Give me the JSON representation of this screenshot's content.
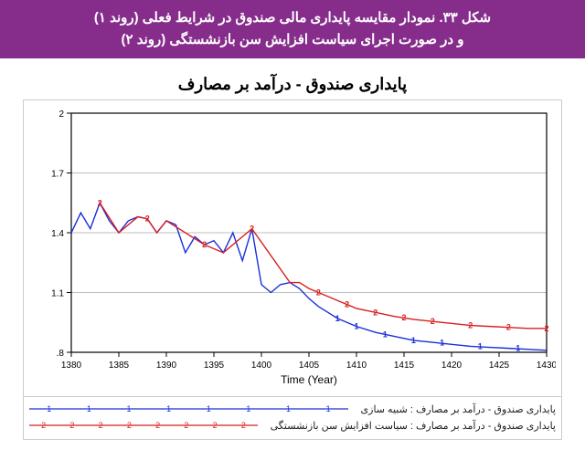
{
  "caption": {
    "line1": "شکل ۳۳. نمودار مقایسه پایداری مالی صندوق در شرایط فعلی (روند ۱)",
    "line2": "و در صورت اجرای سیاست افزایش سن بازنشستگی (روند ۲)"
  },
  "chart": {
    "type": "line",
    "title": "پایداری صندوق - درآمد بر مصارف",
    "xlabel": "Time (Year)",
    "xlim": [
      1380,
      1430
    ],
    "xticks": [
      1380,
      1385,
      1390,
      1395,
      1400,
      1405,
      1410,
      1415,
      1420,
      1425,
      1430
    ],
    "ylim": [
      0.8,
      2.0
    ],
    "yticks": [
      0.8,
      1.1,
      1.4,
      1.7,
      2.0
    ],
    "ytick_labels": [
      ".8",
      "1.1",
      "1.4",
      "1.7",
      "2"
    ],
    "background_color": "#ffffff",
    "grid_color": "#bfbfbf",
    "axis_color": "#000000",
    "label_fontsize": 12,
    "tick_fontsize": 10,
    "line_width": 1.4,
    "series": [
      {
        "label": "پایداری صندوق - درآمد بر مصارف : شبیه سازی",
        "color": "#1a2fdc",
        "marker_char": "1",
        "x": [
          1380,
          1381,
          1382,
          1383,
          1384,
          1385,
          1386,
          1387,
          1388,
          1389,
          1390,
          1391,
          1392,
          1393,
          1394,
          1395,
          1396,
          1397,
          1398,
          1399,
          1400,
          1401,
          1402,
          1403,
          1404,
          1405,
          1406,
          1407,
          1408,
          1409,
          1410,
          1412,
          1414,
          1416,
          1418,
          1420,
          1422,
          1424,
          1426,
          1428,
          1430
        ],
        "y": [
          1.4,
          1.5,
          1.42,
          1.55,
          1.46,
          1.4,
          1.46,
          1.48,
          1.47,
          1.4,
          1.46,
          1.44,
          1.3,
          1.38,
          1.34,
          1.36,
          1.3,
          1.4,
          1.26,
          1.42,
          1.14,
          1.1,
          1.14,
          1.15,
          1.12,
          1.07,
          1.03,
          1.0,
          0.97,
          0.95,
          0.93,
          0.9,
          0.88,
          0.86,
          0.85,
          0.84,
          0.83,
          0.825,
          0.82,
          0.815,
          0.81
        ],
        "marker_x": [
          1408,
          1410,
          1413,
          1416,
          1419,
          1423,
          1427
        ],
        "marker_y": [
          0.97,
          0.93,
          0.89,
          0.86,
          0.848,
          0.83,
          0.82
        ]
      },
      {
        "label": "پایداری صندوق - درآمد بر مصارف : سیاست افزایش سن بازنشستگی",
        "color": "#d81f1f",
        "marker_char": "2",
        "x": [
          1383,
          1385,
          1387,
          1388,
          1389,
          1390,
          1394,
          1396,
          1399,
          1403,
          1404,
          1405,
          1406,
          1407,
          1408,
          1409,
          1410,
          1412,
          1414,
          1416,
          1418,
          1420,
          1422,
          1424,
          1426,
          1428,
          1430
        ],
        "y": [
          1.55,
          1.4,
          1.48,
          1.47,
          1.4,
          1.46,
          1.34,
          1.3,
          1.42,
          1.15,
          1.15,
          1.12,
          1.1,
          1.08,
          1.06,
          1.04,
          1.02,
          1.0,
          0.98,
          0.965,
          0.955,
          0.945,
          0.935,
          0.93,
          0.925,
          0.92,
          0.92
        ],
        "marker_x": [
          1383,
          1388,
          1394,
          1399,
          1406,
          1409,
          1412,
          1415,
          1418,
          1422,
          1426,
          1430
        ],
        "marker_y": [
          1.55,
          1.47,
          1.34,
          1.42,
          1.1,
          1.04,
          1.0,
          0.975,
          0.955,
          0.935,
          0.925,
          0.92
        ]
      }
    ]
  },
  "legend_line_markers": [
    "1",
    "1",
    "1",
    "1",
    "1",
    "1",
    "1",
    "1"
  ]
}
